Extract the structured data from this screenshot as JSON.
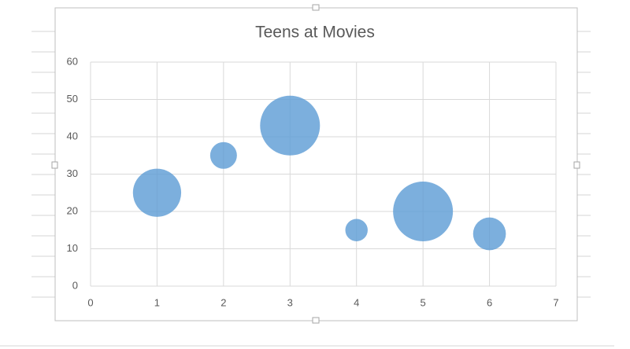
{
  "chart_data": {
    "type": "bubble",
    "title": "Teens at Movies",
    "x": [
      1,
      2,
      3,
      4,
      5,
      6
    ],
    "values": [
      25,
      35,
      43,
      15,
      20,
      14
    ],
    "sizes": [
      65,
      20,
      100,
      14,
      100,
      30
    ],
    "color": "#5b9bd5",
    "xlim": [
      0,
      7
    ],
    "xticks": [
      0,
      1,
      2,
      3,
      4,
      5,
      6,
      7
    ],
    "ylim": [
      0,
      60
    ],
    "yticks": [
      0,
      10,
      20,
      30,
      40,
      50,
      60
    ],
    "grid": true
  }
}
